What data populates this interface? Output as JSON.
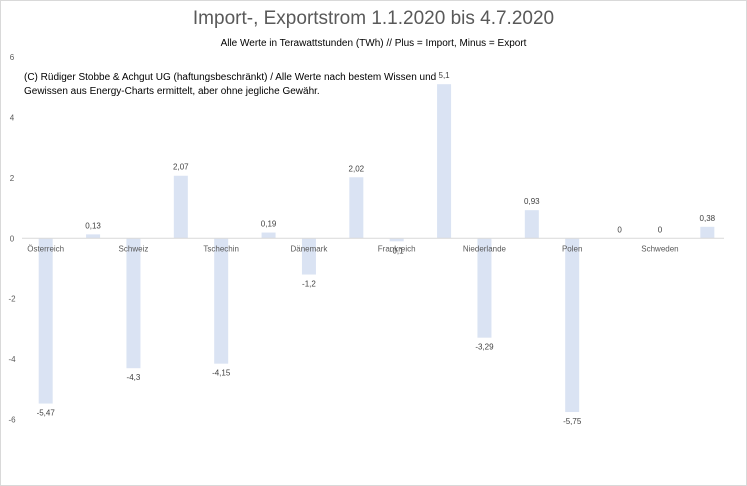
{
  "chart_data": {
    "type": "bar",
    "title": "Import-, Exportstrom 1.1.2020 bis 4.7.2020",
    "subtitle": "Alle Werte in Terawattstunden (TWh) // Plus = Import, Minus = Export",
    "note": "(C) Rüdiger Stobbe & Achgut UG (haftungsbeschränkt) / Alle Werte nach bestem Wissen und Gewissen aus Energy-Charts ermittelt, aber ohne jegliche Gewähr.",
    "categories": [
      "Österreich",
      "Schweiz",
      "Tschechin",
      "Dänemark",
      "Frankreich",
      "Niederlande",
      "Polen",
      "Schweden"
    ],
    "series": [
      {
        "values": [
          -5.47,
          -4.3,
          -4.15,
          -1.2,
          -0.1,
          -3.29,
          -5.75,
          0
        ]
      },
      {
        "values": [
          0.13,
          2.07,
          0.19,
          2.02,
          5.1,
          0.93,
          0,
          0.38
        ]
      }
    ],
    "data_labels": [
      [
        "-5,47",
        "-4,3",
        "-4,15",
        "-1,2",
        "-0,1",
        "-3,29",
        "-5,75",
        "0"
      ],
      [
        "0,13",
        "2,07",
        "0,19",
        "2,02",
        "5,1",
        "0,93",
        "0",
        "0,38"
      ]
    ],
    "y_ticks": [
      "6",
      "4",
      "2",
      "0",
      "-2",
      "-4",
      "-6"
    ],
    "ylim": [
      -8,
      6
    ],
    "grid": false,
    "bar_color": "#dae3f3"
  }
}
